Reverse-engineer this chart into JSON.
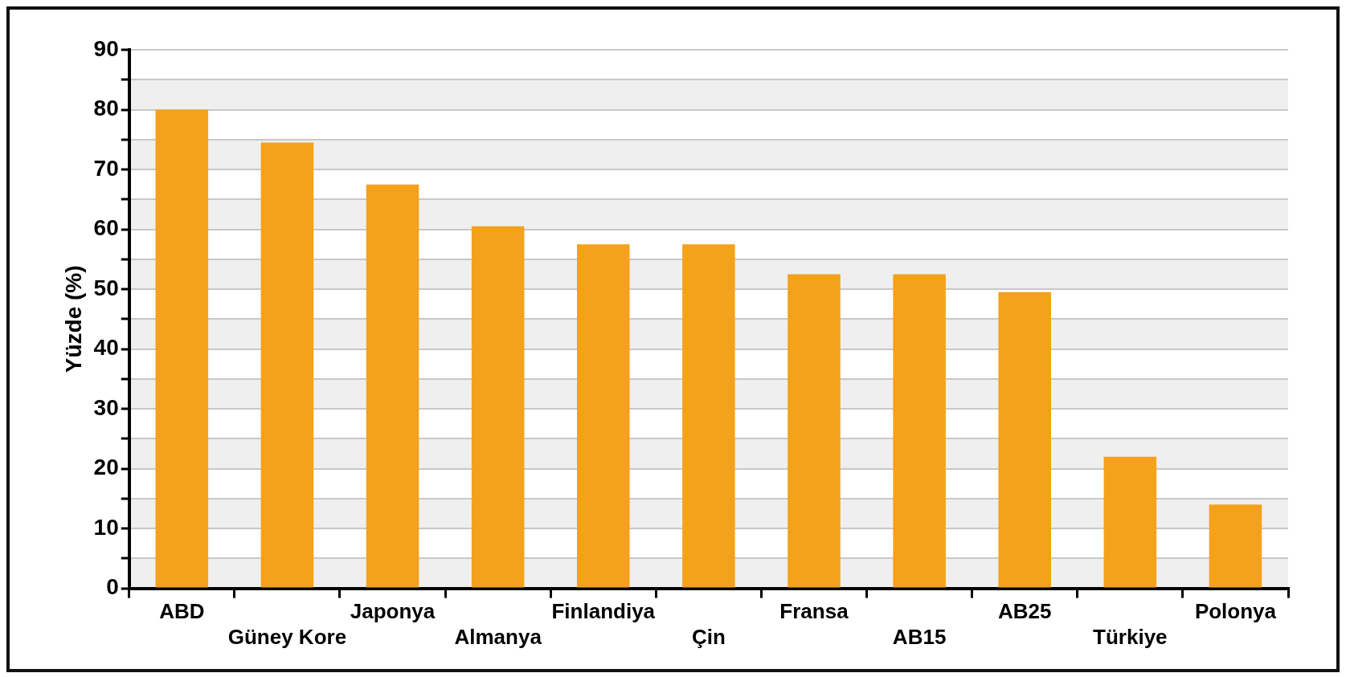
{
  "chart_data": {
    "type": "bar",
    "ylabel": "Yüzde (%)",
    "categories": [
      "ABD",
      "Güney Kore",
      "Japonya",
      "Almanya",
      "Finlandiya",
      "Çin",
      "Fransa",
      "AB15",
      "AB25",
      "Türkiye",
      "Polonya"
    ],
    "values": [
      80,
      74.5,
      67.5,
      60.5,
      57.5,
      57.5,
      52.5,
      52.5,
      49.5,
      22,
      14
    ],
    "color": "#f4a21c",
    "ylim": [
      0,
      90
    ],
    "yticks": [
      0,
      {
        "value": 5,
        "label": null
      },
      10,
      {
        "value": 15,
        "label": null
      },
      20,
      {
        "value": 25,
        "label": null
      },
      30,
      {
        "value": 35,
        "label": null
      },
      40,
      {
        "value": 45,
        "label": null
      },
      50,
      {
        "value": 55,
        "label": null
      },
      60,
      {
        "value": 65,
        "label": null
      },
      70,
      {
        "value": 75,
        "label": null
      },
      80,
      {
        "value": 85,
        "label": null
      },
      90
    ],
    "grid": "y"
  }
}
